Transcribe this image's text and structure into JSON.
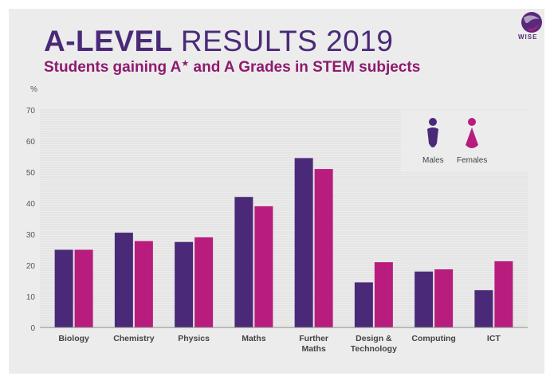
{
  "header": {
    "title_bold": "A-LEVEL",
    "title_light": "RESULTS 2019",
    "subtitle_pre": "Students gaining A",
    "subtitle_star": "★",
    "subtitle_post": " and A Grades in STEM subjects"
  },
  "logo": {
    "text": "WISE",
    "icon": "wise-logo"
  },
  "colors": {
    "males": "#4a2a78",
    "females": "#b81c7c",
    "panel": "#ececec",
    "axis": "#555555"
  },
  "chart_data": {
    "type": "bar",
    "ylabel": "%",
    "ylim": [
      0,
      70
    ],
    "yticks": [
      0,
      10,
      20,
      30,
      40,
      50,
      60,
      70
    ],
    "grid": true,
    "legend": "top-right",
    "categories": [
      [
        "Biology"
      ],
      [
        "Chemistry"
      ],
      [
        "Physics"
      ],
      [
        "Maths"
      ],
      [
        "Further",
        "Maths"
      ],
      [
        "Design &",
        "Technology"
      ],
      [
        "Computing"
      ],
      [
        "ICT"
      ]
    ],
    "series": [
      {
        "name": "Males",
        "color": "#4a2a78",
        "values": [
          25,
          30.5,
          27.5,
          42,
          54.5,
          14.5,
          18,
          12
        ]
      },
      {
        "name": "Females",
        "color": "#b81c7c",
        "values": [
          25,
          27.8,
          29,
          39,
          51,
          21,
          18.7,
          21.3
        ]
      }
    ]
  }
}
